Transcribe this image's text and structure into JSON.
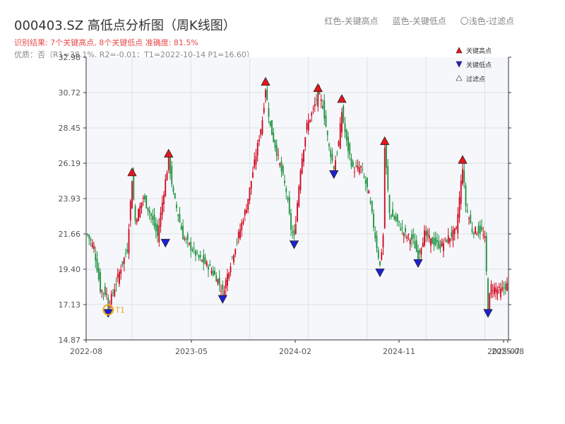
{
  "header": {
    "title": "000403.SZ 高低点分析图（周K线图）",
    "result": "识别结果: 7个关键高点, 8个关键低点  准确度: 81.5%",
    "quality": "优质：否（R1=38.1%, R2=-0.01；T1=2022-10-14 P1=16.60）"
  },
  "legend_top": [
    "红色-关键高点",
    "蓝色-关键低点",
    "〇浅色-过滤点"
  ],
  "colors": {
    "up": "#d0021b",
    "down": "#1a8f3c",
    "high_marker": "#e8141c",
    "low_marker": "#1f1fd6",
    "t1": "#f5a623"
  },
  "chart_data": {
    "type": "candlestick",
    "title": "000403.SZ 高低点分析图（周K线图）",
    "ylim": [
      14.87,
      32.98
    ],
    "y_ticks": [
      "14.87",
      "17.13",
      "19.40",
      "21.66",
      "23.93",
      "26.19",
      "28.45",
      "30.72",
      "32.98"
    ],
    "x_ticks": [
      "2022-08",
      "2023-05",
      "2024-02",
      "2024-11",
      "2025-07",
      "2025-08"
    ],
    "grid": true,
    "legend": {
      "placement": "top-right",
      "entries": [
        "关键高点",
        "关键低点",
        "过滤点"
      ]
    },
    "close_path": [
      [
        0,
        21.6
      ],
      [
        4,
        20.8
      ],
      [
        8,
        18.1
      ],
      [
        12,
        17.8
      ],
      [
        13,
        17.0
      ],
      [
        16,
        17.9
      ],
      [
        20,
        19.2
      ],
      [
        25,
        20.7
      ],
      [
        28,
        25.2
      ],
      [
        30,
        22.5
      ],
      [
        35,
        24.0
      ],
      [
        40,
        22.8
      ],
      [
        44,
        21.5
      ],
      [
        48,
        24.4
      ],
      [
        51,
        26.4
      ],
      [
        54,
        24.2
      ],
      [
        57,
        22.9
      ],
      [
        60,
        21.5
      ],
      [
        65,
        20.8
      ],
      [
        70,
        20.1
      ],
      [
        76,
        19.6
      ],
      [
        82,
        18.7
      ],
      [
        85,
        17.9
      ],
      [
        90,
        19.8
      ],
      [
        95,
        21.6
      ],
      [
        100,
        23.4
      ],
      [
        105,
        26.2
      ],
      [
        110,
        29.0
      ],
      [
        112,
        31.0
      ],
      [
        115,
        28.5
      ],
      [
        120,
        26.5
      ],
      [
        125,
        24.4
      ],
      [
        128,
        22.0
      ],
      [
        130,
        21.4
      ],
      [
        134,
        25.9
      ],
      [
        138,
        28.6
      ],
      [
        142,
        29.6
      ],
      [
        145,
        30.6
      ],
      [
        148,
        29.9
      ],
      [
        152,
        27.2
      ],
      [
        155,
        25.9
      ],
      [
        158,
        27.5
      ],
      [
        160,
        29.5
      ],
      [
        163,
        27.5
      ],
      [
        167,
        25.8
      ],
      [
        172,
        25.9
      ],
      [
        177,
        24.2
      ],
      [
        181,
        21.5
      ],
      [
        184,
        19.6
      ],
      [
        186,
        21.6
      ],
      [
        187,
        27.2
      ],
      [
        190,
        23.0
      ],
      [
        195,
        22.4
      ],
      [
        200,
        21.6
      ],
      [
        205,
        21.2
      ],
      [
        208,
        20.2
      ],
      [
        212,
        21.7
      ],
      [
        216,
        21.2
      ],
      [
        222,
        20.9
      ],
      [
        228,
        21.5
      ],
      [
        232,
        21.9
      ],
      [
        236,
        26.0
      ],
      [
        238,
        23.5
      ],
      [
        242,
        21.9
      ],
      [
        248,
        21.8
      ],
      [
        250,
        21.3
      ],
      [
        252,
        17.0
      ],
      [
        254,
        18.3
      ],
      [
        260,
        18.0
      ],
      [
        264,
        18.4
      ]
    ],
    "key_highs": [
      {
        "date": "2023-01",
        "value": 25.2
      },
      {
        "date": "2023-04",
        "value": 26.4
      },
      {
        "date": "2023-12",
        "value": 31.0
      },
      {
        "date": "2024-04",
        "value": 30.6
      },
      {
        "date": "2024-06",
        "value": 29.9
      },
      {
        "date": "2024-10",
        "value": 27.2
      },
      {
        "date": "2025-04",
        "value": 26.0
      }
    ],
    "key_lows": [
      {
        "date": "2022-10",
        "value": 17.0
      },
      {
        "date": "2023-04",
        "value": 21.5
      },
      {
        "date": "2023-09",
        "value": 17.9
      },
      {
        "date": "2024-02",
        "value": 21.4
      },
      {
        "date": "2024-05",
        "value": 25.9
      },
      {
        "date": "2024-10",
        "value": 19.6
      },
      {
        "date": "2025-01",
        "value": 20.2
      },
      {
        "date": "2025-05",
        "value": 17.0
      }
    ],
    "t1": {
      "label": "T1",
      "date": "2022-10-14",
      "value": 16.6
    }
  }
}
